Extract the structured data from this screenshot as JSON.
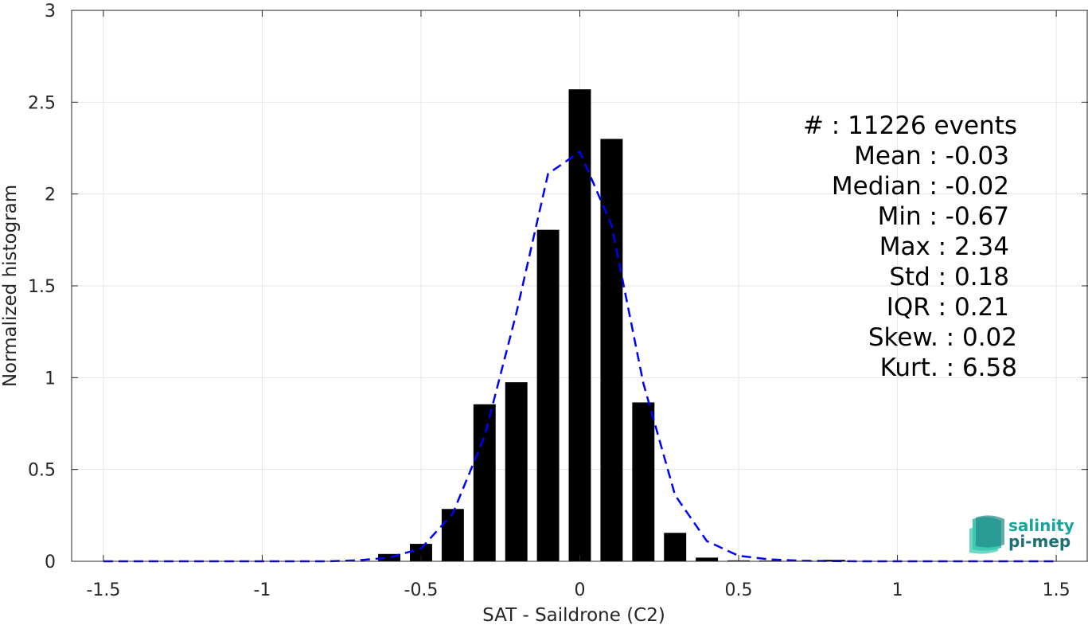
{
  "chart_data": {
    "type": "bar",
    "xlabel": "SAT - Saildrone (C2)",
    "ylabel": "Normalized histogram",
    "xlim": [
      -1.6,
      1.6
    ],
    "ylim": [
      0,
      3
    ],
    "grid": true,
    "x_ticks": [
      -1.5,
      -1,
      -0.5,
      0,
      0.5,
      1,
      1.5
    ],
    "x_tick_labels": [
      "-1.5",
      "-1",
      "-0.5",
      "0",
      "0.5",
      "1",
      "1.5"
    ],
    "y_ticks": [
      0,
      0.5,
      1,
      1.5,
      2,
      2.5,
      3
    ],
    "y_tick_labels": [
      "0",
      "0.5",
      "1",
      "1.5",
      "2",
      "2.5",
      "3"
    ],
    "bar_width": 0.07,
    "bars": {
      "x": [
        -0.6,
        -0.5,
        -0.4,
        -0.3,
        -0.2,
        -0.1,
        0.0,
        0.1,
        0.2,
        0.3,
        0.4,
        0.5,
        0.6,
        0.7,
        0.8,
        0.9,
        1.0,
        1.1,
        1.2,
        1.3,
        1.4,
        1.5
      ],
      "values": [
        0.04,
        0.095,
        0.285,
        0.855,
        0.975,
        1.805,
        2.57,
        2.3,
        0.865,
        0.155,
        0.02,
        0.005,
        0.004,
        0.003,
        0.008,
        0.002,
        0.001,
        0.001,
        0.001,
        0.001,
        0.001,
        0.001
      ]
    },
    "fit_curve": {
      "style": "dashed",
      "color": "#0000ff",
      "x": [
        -1.5,
        -1.4,
        -1.3,
        -1.2,
        -1.1,
        -1.0,
        -0.9,
        -0.8,
        -0.7,
        -0.6,
        -0.5,
        -0.4,
        -0.3,
        -0.2,
        -0.1,
        0.0,
        0.1,
        0.2,
        0.3,
        0.4,
        0.5,
        0.6,
        0.7,
        0.8,
        0.9,
        1.0,
        1.1,
        1.2,
        1.3,
        1.4,
        1.5
      ],
      "y": [
        0,
        0,
        0,
        0,
        0,
        0,
        0,
        0,
        0.005,
        0.02,
        0.07,
        0.26,
        0.68,
        1.35,
        2.11,
        2.23,
        1.83,
        0.97,
        0.36,
        0.11,
        0.03,
        0.01,
        0.003,
        0.001,
        0,
        0,
        0,
        0,
        0,
        0,
        0
      ]
    },
    "bar_color": "#000000",
    "stats": [
      "#  : 11226 events",
      "Mean : -0.03",
      "Median : -0.02",
      "Min : -0.67",
      "Max : 2.34",
      "Std : 0.18",
      "IQR : 0.21",
      "Skew. : 0.02",
      "Kurt. : 6.58"
    ]
  },
  "logo": {
    "line1": "salinity",
    "line2": "pi-mep",
    "color1": "#1aa39a",
    "color2": "#1e6f73"
  }
}
